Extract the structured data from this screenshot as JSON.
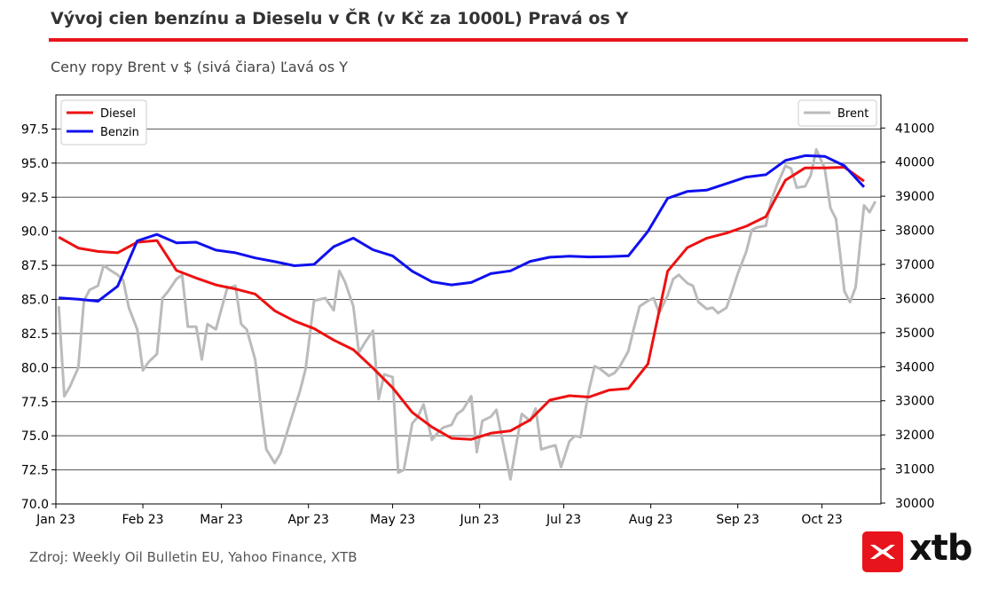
{
  "header": {
    "title": "Vývoj cien benzínu a Dieselu v ČR (v Kč za 1000L) Pravá os Y",
    "subtitle": "Ceny ropy Brent v $ (sivá čiara) Ľavá os Y"
  },
  "footer": {
    "source": "Zdroj: Weekly Oil Bulletin EU, Yahoo Finance, XTB"
  },
  "logo": {
    "text": "xtb",
    "icon": "xtb-logo-icon"
  },
  "colors": {
    "accent": "#e8141c",
    "diesel": "#ee1111",
    "benzin": "#1010ee",
    "brent": "#bbbbbb",
    "grid": "#555555"
  },
  "chart_data": {
    "type": "line",
    "x_tick_labels": [
      "Jan 23",
      "Feb 23",
      "Mar 23",
      "Apr 23",
      "May 23",
      "Jun 23",
      "Jul 23",
      "Aug 23",
      "Sep 23",
      "Oct 23"
    ],
    "left_axis": {
      "ylim": [
        70.0,
        100.0
      ],
      "ticks": [
        "70.0",
        "72.5",
        "75.0",
        "77.5",
        "80.0",
        "82.5",
        "85.0",
        "87.5",
        "90.0",
        "92.5",
        "95.0",
        "97.5"
      ]
    },
    "right_axis": {
      "ylim": [
        29975,
        41970
      ],
      "ticks": [
        "30000",
        "31000",
        "32000",
        "33000",
        "34000",
        "35000",
        "36000",
        "37000",
        "38000",
        "39000",
        "40000",
        "41000"
      ]
    },
    "grid": "horizontal",
    "legends": [
      {
        "position": "top-left",
        "entries": [
          "Diesel",
          "Benzin"
        ]
      },
      {
        "position": "top-right",
        "entries": [
          "Brent"
        ]
      }
    ],
    "series": [
      {
        "name": "Diesel",
        "axis": "right",
        "x": [
          "2023-01-02",
          "2023-01-09",
          "2023-01-16",
          "2023-01-23",
          "2023-01-30",
          "2023-02-06",
          "2023-02-13",
          "2023-02-20",
          "2023-02-27",
          "2023-03-06",
          "2023-03-13",
          "2023-03-20",
          "2023-03-27",
          "2023-04-03",
          "2023-04-10",
          "2023-04-17",
          "2023-04-24",
          "2023-05-01",
          "2023-05-08",
          "2023-05-15",
          "2023-05-22",
          "2023-05-29",
          "2023-06-05",
          "2023-06-12",
          "2023-06-19",
          "2023-06-26",
          "2023-07-03",
          "2023-07-10",
          "2023-07-17",
          "2023-07-24",
          "2023-07-31",
          "2023-08-07",
          "2023-08-14",
          "2023-08-21",
          "2023-08-28",
          "2023-09-04",
          "2023-09-11",
          "2023-09-18",
          "2023-09-25",
          "2023-10-02",
          "2023-10-09",
          "2023-10-16"
        ],
        "values": [
          37800,
          37480,
          37380,
          37340,
          37650,
          37700,
          36820,
          36600,
          36400,
          36280,
          36130,
          35640,
          35340,
          35120,
          34780,
          34500,
          33960,
          33380,
          32660,
          32230,
          31900,
          31870,
          32050,
          32120,
          32440,
          33020,
          33150,
          33110,
          33310,
          33360,
          34080,
          36800,
          37490,
          37770,
          37920,
          38120,
          38400,
          39470,
          39830,
          39830,
          39850,
          39440
        ]
      },
      {
        "name": "Benzin",
        "axis": "right",
        "x": [
          "2023-01-02",
          "2023-01-09",
          "2023-01-16",
          "2023-01-23",
          "2023-01-30",
          "2023-02-06",
          "2023-02-13",
          "2023-02-20",
          "2023-02-27",
          "2023-03-06",
          "2023-03-13",
          "2023-03-20",
          "2023-03-27",
          "2023-04-03",
          "2023-04-10",
          "2023-04-17",
          "2023-04-24",
          "2023-05-01",
          "2023-05-08",
          "2023-05-15",
          "2023-05-22",
          "2023-05-29",
          "2023-06-05",
          "2023-06-12",
          "2023-06-19",
          "2023-06-26",
          "2023-07-03",
          "2023-07-10",
          "2023-07-17",
          "2023-07-24",
          "2023-07-31",
          "2023-08-07",
          "2023-08-14",
          "2023-08-21",
          "2023-08-28",
          "2023-09-04",
          "2023-09-11",
          "2023-09-18",
          "2023-09-25",
          "2023-10-02",
          "2023-10-09",
          "2023-10-16"
        ],
        "values": [
          36020,
          35980,
          35920,
          36360,
          37690,
          37880,
          37630,
          37650,
          37420,
          37340,
          37190,
          37080,
          36960,
          37000,
          37520,
          37770,
          37430,
          37250,
          36800,
          36490,
          36400,
          36470,
          36730,
          36810,
          37090,
          37210,
          37240,
          37220,
          37230,
          37250,
          37970,
          38940,
          39140,
          39180,
          39370,
          39560,
          39630,
          40050,
          40190,
          40170,
          39890,
          39270
        ]
      },
      {
        "name": "Brent",
        "axis": "left",
        "x": [
          "2023-01-02",
          "2023-01-04",
          "2023-01-06",
          "2023-01-09",
          "2023-01-11",
          "2023-01-13",
          "2023-01-16",
          "2023-01-18",
          "2023-01-20",
          "2023-01-23",
          "2023-01-25",
          "2023-01-27",
          "2023-01-30",
          "2023-02-01",
          "2023-02-03",
          "2023-02-06",
          "2023-02-08",
          "2023-02-10",
          "2023-02-13",
          "2023-02-15",
          "2023-02-17",
          "2023-02-20",
          "2023-02-22",
          "2023-02-24",
          "2023-02-27",
          "2023-03-01",
          "2023-03-03",
          "2023-03-06",
          "2023-03-08",
          "2023-03-10",
          "2023-03-13",
          "2023-03-15",
          "2023-03-17",
          "2023-03-20",
          "2023-03-22",
          "2023-03-24",
          "2023-03-27",
          "2023-03-29",
          "2023-03-31",
          "2023-04-03",
          "2023-04-05",
          "2023-04-07",
          "2023-04-10",
          "2023-04-12",
          "2023-04-14",
          "2023-04-17",
          "2023-04-19",
          "2023-04-21",
          "2023-04-24",
          "2023-04-26",
          "2023-04-28",
          "2023-05-01",
          "2023-05-03",
          "2023-05-05",
          "2023-05-08",
          "2023-05-10",
          "2023-05-12",
          "2023-05-15",
          "2023-05-17",
          "2023-05-19",
          "2023-05-22",
          "2023-05-24",
          "2023-05-26",
          "2023-05-29",
          "2023-05-31",
          "2023-06-02",
          "2023-06-05",
          "2023-06-07",
          "2023-06-09",
          "2023-06-12",
          "2023-06-14",
          "2023-06-16",
          "2023-06-19",
          "2023-06-21",
          "2023-06-23",
          "2023-06-26",
          "2023-06-28",
          "2023-06-30",
          "2023-07-03",
          "2023-07-05",
          "2023-07-07",
          "2023-07-10",
          "2023-07-12",
          "2023-07-14",
          "2023-07-17",
          "2023-07-19",
          "2023-07-21",
          "2023-07-24",
          "2023-07-26",
          "2023-07-28",
          "2023-07-31",
          "2023-08-02",
          "2023-08-04",
          "2023-08-07",
          "2023-08-09",
          "2023-08-11",
          "2023-08-14",
          "2023-08-16",
          "2023-08-18",
          "2023-08-21",
          "2023-08-23",
          "2023-08-25",
          "2023-08-28",
          "2023-08-30",
          "2023-09-01",
          "2023-09-04",
          "2023-09-06",
          "2023-09-08",
          "2023-09-11",
          "2023-09-13",
          "2023-09-15",
          "2023-09-18",
          "2023-09-20",
          "2023-09-22",
          "2023-09-25",
          "2023-09-27",
          "2023-09-29",
          "2023-10-02",
          "2023-10-04",
          "2023-10-06",
          "2023-10-09",
          "2023-10-11",
          "2023-10-13",
          "2023-10-16",
          "2023-10-18",
          "2023-10-20"
        ],
        "values": [
          84.5,
          77.9,
          78.6,
          80.0,
          84.9,
          85.7,
          86.0,
          87.5,
          87.2,
          86.8,
          86.4,
          84.4,
          82.8,
          79.8,
          80.4,
          81.0,
          85.1,
          85.6,
          86.5,
          86.8,
          83.0,
          83.0,
          80.6,
          83.2,
          82.8,
          84.3,
          85.8,
          86.0,
          83.2,
          82.8,
          80.6,
          77.2,
          74.0,
          73.0,
          73.7,
          75.0,
          77.0,
          78.3,
          79.9,
          84.9,
          85.0,
          85.1,
          84.2,
          87.1,
          86.3,
          84.5,
          81.1,
          81.8,
          82.7,
          77.7,
          79.5,
          79.3,
          72.3,
          72.5,
          75.9,
          76.4,
          77.3,
          74.7,
          75.2,
          75.6,
          75.8,
          76.6,
          76.9,
          77.9,
          73.8,
          76.1,
          76.4,
          76.9,
          74.8,
          71.8,
          74.3,
          76.6,
          76.1,
          77.0,
          74.0,
          74.2,
          74.3,
          72.7,
          74.6,
          75.0,
          74.9,
          78.4,
          80.1,
          79.9,
          79.4,
          79.6,
          80.1,
          81.2,
          82.9,
          84.5,
          84.9,
          85.1,
          84.0,
          85.3,
          86.5,
          86.8,
          86.2,
          86.0,
          84.8,
          84.3,
          84.4,
          84.0,
          84.4,
          85.6,
          86.9,
          88.5,
          90.1,
          90.3,
          90.4,
          92.3,
          93.4,
          94.8,
          94.6,
          93.2,
          93.3,
          94.1,
          96.0,
          94.6,
          91.7,
          90.9,
          85.6,
          84.8,
          85.9,
          91.9,
          91.4,
          92.2
        ]
      }
    ]
  }
}
